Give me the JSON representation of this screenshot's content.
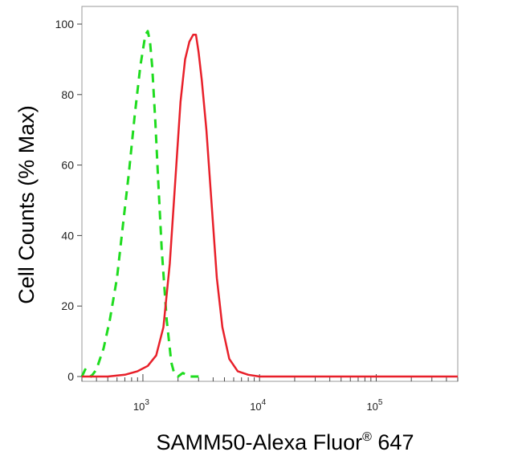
{
  "chart_data": {
    "type": "line",
    "title": "",
    "xlabel_main": "SAMM50-Alexa Fluor",
    "xlabel_sup": "®",
    "xlabel_tail": " 647",
    "ylabel": "Cell Counts (% Max)",
    "x_scale": "log",
    "xlim": [
      300,
      500000
    ],
    "ylim": [
      0,
      100
    ],
    "y_ticks": [
      0,
      20,
      40,
      60,
      80,
      100
    ],
    "x_ticks": [
      {
        "value": 1000,
        "base": "10",
        "exp": "3"
      },
      {
        "value": 10000,
        "base": "10",
        "exp": "4"
      },
      {
        "value": 100000,
        "base": "10",
        "exp": "5"
      }
    ],
    "grid": false,
    "series": [
      {
        "color": "#1fdc1f",
        "dash": true,
        "x": [
          300,
          320,
          360,
          400,
          460,
          520,
          600,
          680,
          760,
          850,
          950,
          1050,
          1100,
          1150,
          1200,
          1280,
          1350,
          1450,
          1600,
          1750,
          1850,
          2000,
          2200,
          2500,
          3000
        ],
        "y": [
          0,
          2,
          0,
          2,
          8,
          16,
          28,
          44,
          58,
          74,
          88,
          97,
          98,
          95,
          88,
          72,
          56,
          36,
          16,
          4,
          1,
          0,
          1,
          0,
          0
        ]
      },
      {
        "color": "#e8202a",
        "dash": false,
        "x": [
          300,
          500,
          700,
          900,
          1100,
          1300,
          1500,
          1700,
          1900,
          2100,
          2300,
          2500,
          2700,
          2850,
          3000,
          3200,
          3500,
          3900,
          4300,
          4800,
          5500,
          6500,
          8000,
          10000,
          20000,
          100000,
          500000
        ],
        "y": [
          0,
          0,
          0.5,
          1.5,
          3,
          6,
          14,
          32,
          56,
          78,
          90,
          95,
          97,
          97,
          92,
          84,
          70,
          48,
          28,
          14,
          5,
          1.5,
          0.5,
          0,
          0,
          0,
          0
        ]
      }
    ]
  }
}
